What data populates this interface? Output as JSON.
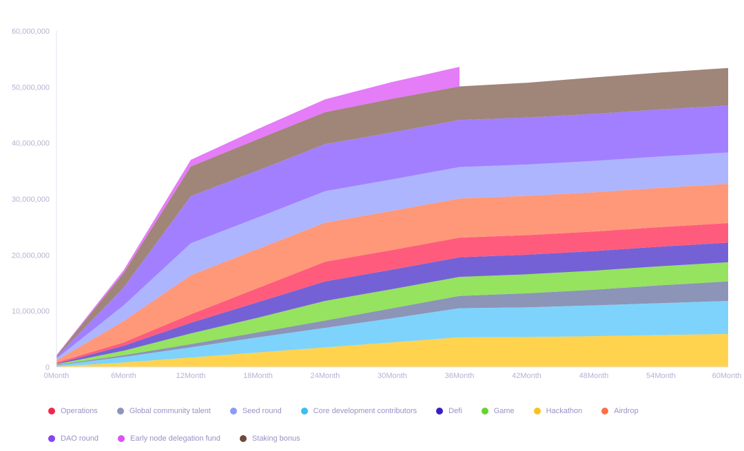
{
  "chart_data": {
    "type": "area",
    "stacked": true,
    "title": "",
    "xlabel": "",
    "ylabel": "",
    "ylim": [
      0,
      60000000
    ],
    "yticks": [
      "0",
      "10,000,000",
      "20,000,000",
      "30,000,000",
      "40,000,000",
      "50,000,000",
      "60,000,000"
    ],
    "categories": [
      "0Month",
      "6Month",
      "12Month",
      "18Month",
      "24Month",
      "30Month",
      "36Month",
      "42Month",
      "48Month",
      "54Month",
      "60Month"
    ],
    "legend_position": "bottom-left",
    "grid": false,
    "series": [
      {
        "name": "Hackathon",
        "color": "#ffd34e",
        "values": [
          100000,
          800000,
          1700000,
          2600000,
          3500000,
          4400000,
          5300000,
          5350000,
          5500000,
          5700000,
          5900000
        ]
      },
      {
        "name": "Core development contributors",
        "color": "#7dd3fc",
        "values": [
          200000,
          1000000,
          1800000,
          2700000,
          3500000,
          4300000,
          5200000,
          5300000,
          5500000,
          5700000,
          5900000
        ]
      },
      {
        "name": "Global community talent",
        "color": "#8c94b8",
        "values": [
          100000,
          300000,
          600000,
          900000,
          1300000,
          1800000,
          2200000,
          2500000,
          2800000,
          3200000,
          3500000
        ]
      },
      {
        "name": "Game",
        "color": "#95e35f",
        "values": [
          100000,
          800000,
          1900000,
          2600000,
          3500000,
          3400000,
          3400000,
          3400000,
          3400000,
          3400000,
          3400000
        ]
      },
      {
        "name": "Defi",
        "color": "#7561d6",
        "values": [
          100000,
          900000,
          1900000,
          2800000,
          3500000,
          3500000,
          3500000,
          3500000,
          3500000,
          3500000,
          3500000
        ]
      },
      {
        "name": "Operations",
        "color": "#ff5c7d",
        "values": [
          200000,
          600000,
          1500000,
          2500000,
          3500000,
          3500000,
          3500000,
          3500000,
          3500000,
          3500000,
          3500000
        ]
      },
      {
        "name": "Airdrop",
        "color": "#ff9878",
        "values": [
          400000,
          3800000,
          7000000,
          7000000,
          7000000,
          7000000,
          7000000,
          7000000,
          7000000,
          7000000,
          7000000
        ]
      },
      {
        "name": "Seed round",
        "color": "#adb5ff",
        "values": [
          300000,
          2800000,
          5700000,
          5600000,
          5600000,
          5600000,
          5600000,
          5600000,
          5600000,
          5600000,
          5600000
        ]
      },
      {
        "name": "DAO round",
        "color": "#a27fff",
        "values": [
          300000,
          3200000,
          8400000,
          8400000,
          8400000,
          8400000,
          8400000,
          8400000,
          8400000,
          8400000,
          8400000
        ]
      },
      {
        "name": "Staking bonus",
        "color": "#a08579",
        "values": [
          200000,
          2600000,
          5300000,
          5600000,
          5700000,
          6000000,
          6000000,
          6200000,
          6500000,
          6600000,
          6700000
        ]
      },
      {
        "name": "Early node delegation fund",
        "color": "#e57cf8",
        "values": [
          100000,
          500000,
          1200000,
          1800000,
          2300000,
          3000000,
          3500000,
          null,
          null,
          null,
          null
        ]
      }
    ]
  },
  "legend": {
    "items": [
      {
        "label": "Operations",
        "color": "#f2274e"
      },
      {
        "label": "Global community talent",
        "color": "#8c96b8"
      },
      {
        "label": "Seed round",
        "color": "#8a9cf7"
      },
      {
        "label": "Core development contributors",
        "color": "#3cbdf5"
      },
      {
        "label": "Defi",
        "color": "#3a1fbf"
      },
      {
        "label": "Game",
        "color": "#62d42e"
      },
      {
        "label": "Hackathon",
        "color": "#f9c11c"
      },
      {
        "label": "Airdrop",
        "color": "#ff7046"
      },
      {
        "label": "DAO round",
        "color": "#8545f2"
      },
      {
        "label": "Early node delegation fund",
        "color": "#dc52f5"
      },
      {
        "label": "Staking bonus",
        "color": "#6e4a3b"
      }
    ]
  }
}
